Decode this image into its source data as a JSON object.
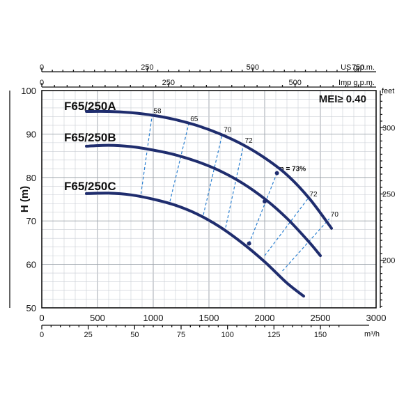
{
  "chart_data": {
    "type": "line",
    "title": "",
    "ylabel": "H (m)",
    "xlabel": "",
    "xlim": [
      0,
      3000
    ],
    "ylim": [
      50,
      100
    ],
    "grid": true,
    "x_ticks": [
      0,
      500,
      1000,
      1500,
      2000,
      2500,
      3000
    ],
    "y_ticks": [
      50,
      60,
      70,
      80,
      90,
      100
    ],
    "secondary_axes": {
      "us_gpm": {
        "label": "US g.p.m.",
        "ticks": [
          "0",
          "250",
          "500",
          "750"
        ]
      },
      "imp_gpm": {
        "label": "Imp g.p.m.",
        "ticks": [
          "0",
          "250",
          "500"
        ]
      },
      "m3h": {
        "label": "m³/h",
        "ticks": [
          "0",
          "25",
          "50",
          "75",
          "100",
          "125",
          "150"
        ]
      },
      "feet": {
        "label": "feet",
        "ticks": [
          "300",
          "250",
          "200"
        ]
      }
    },
    "mei_label": "MEI≥ 0.40",
    "series": [
      {
        "name": "F65/250A",
        "x": [
          400,
          600,
          800,
          1000,
          1200,
          1400,
          1600,
          1800,
          2000,
          2200,
          2400,
          2600
        ],
        "y": [
          95.2,
          95.2,
          94.9,
          94.3,
          93.3,
          91.9,
          90.0,
          87.6,
          84.5,
          80.6,
          75.2,
          68.3
        ]
      },
      {
        "name": "F65/250B",
        "x": [
          400,
          600,
          800,
          1000,
          1200,
          1400,
          1600,
          1800,
          2000,
          2200,
          2400,
          2500
        ],
        "y": [
          87.2,
          87.4,
          87.1,
          86.3,
          85.2,
          83.6,
          81.5,
          78.7,
          75.1,
          70.6,
          65.1,
          62.0
        ]
      },
      {
        "name": "F65/250C",
        "x": [
          400,
          600,
          800,
          1000,
          1200,
          1400,
          1600,
          1800,
          2000,
          2200,
          2350
        ],
        "y": [
          76.3,
          76.4,
          76.0,
          75.0,
          73.6,
          71.5,
          68.6,
          64.9,
          60.6,
          55.7,
          52.7
        ]
      }
    ],
    "efficiency_lines": [
      {
        "label": "58",
        "x": [
          890,
          990
        ],
        "y": [
          76.2,
          94.3
        ]
      },
      {
        "label": "65",
        "x": [
          1150,
          1320
        ],
        "y": [
          74.5,
          92.5
        ]
      },
      {
        "label": "70",
        "x": [
          1450,
          1620
        ],
        "y": [
          71.4,
          90.0
        ]
      },
      {
        "label": "72",
        "x": [
          1650,
          1810
        ],
        "y": [
          68.5,
          87.5
        ]
      },
      {
        "label": "η = 73%",
        "x": [
          1860,
          2110
        ],
        "y": [
          64.8,
          81.0
        ]
      },
      {
        "label": "72",
        "x": [
          2000,
          2390
        ],
        "y": [
          62.0,
          75.2
        ]
      },
      {
        "label": "70",
        "x": [
          2160,
          2580
        ],
        "y": [
          58.5,
          70.5
        ]
      }
    ]
  }
}
